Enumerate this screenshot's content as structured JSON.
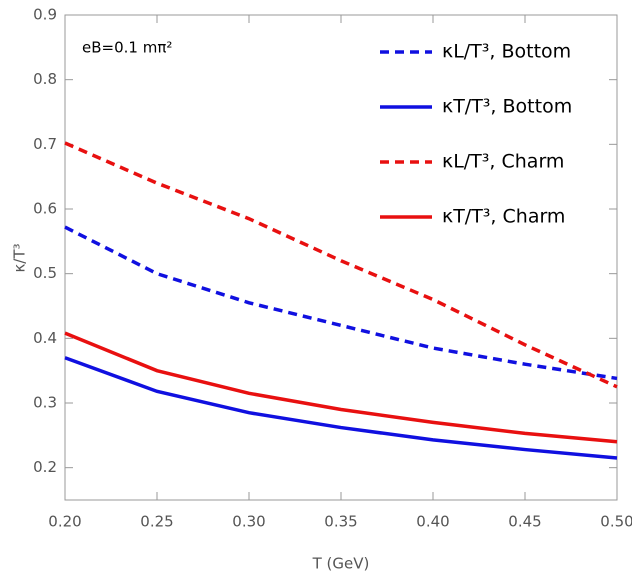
{
  "chart_data": {
    "type": "line",
    "x_label": "T (GeV)",
    "y_label": "κ/T³",
    "annotation": "eB=0.1 mπ²",
    "x": [
      0.2,
      0.25,
      0.3,
      0.35,
      0.4,
      0.45,
      0.5
    ],
    "series": [
      {
        "name": "κL/T³, Bottom",
        "color": "#1010e0",
        "dashed": true,
        "values": [
          0.572,
          0.5,
          0.455,
          0.42,
          0.385,
          0.36,
          0.338
        ]
      },
      {
        "name": "κT/T³, Bottom",
        "color": "#1010e0",
        "dashed": false,
        "values": [
          0.37,
          0.318,
          0.285,
          0.262,
          0.243,
          0.228,
          0.215
        ]
      },
      {
        "name": "κL/T³, Charm",
        "color": "#e81010",
        "dashed": true,
        "values": [
          0.702,
          0.64,
          0.585,
          0.52,
          0.46,
          0.39,
          0.325
        ]
      },
      {
        "name": "κT/T³, Charm",
        "color": "#e81010",
        "dashed": false,
        "values": [
          0.408,
          0.35,
          0.315,
          0.29,
          0.27,
          0.253,
          0.24
        ]
      }
    ],
    "xlim": [
      0.2,
      0.5
    ],
    "ylim": [
      0.15,
      0.9
    ],
    "xticks": [
      {
        "value": 0.2,
        "label": "0.20"
      },
      0.25,
      {
        "value": 0.3,
        "label": "0.30"
      },
      0.35,
      {
        "value": 0.4,
        "label": "0.40"
      },
      0.45,
      {
        "value": 0.5,
        "label": "0.50"
      }
    ],
    "yticks": [
      0.2,
      0.3,
      0.4,
      0.5,
      0.6,
      0.7,
      0.8,
      0.9
    ],
    "legend": "upper right"
  }
}
